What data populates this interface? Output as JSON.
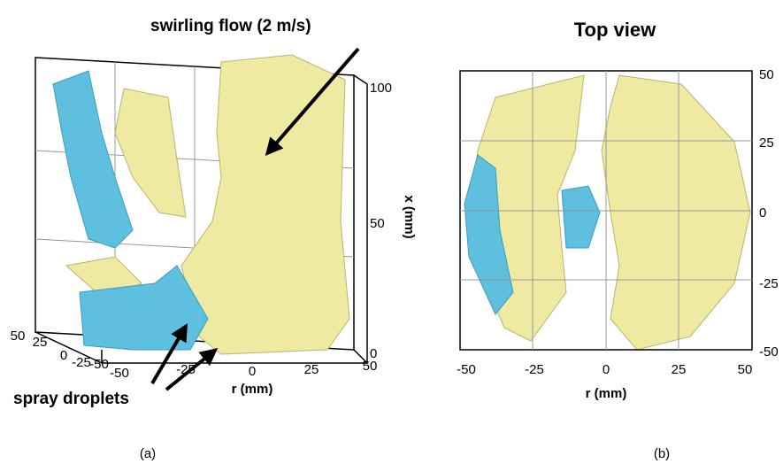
{
  "panel_a": {
    "label": "(a)",
    "annotations": [
      "swirling flow (2 m/s)",
      "spray droplets"
    ],
    "r_axis": {
      "title": "r (mm)",
      "ticks": [
        "-50",
        "-25",
        "0",
        "25",
        "50"
      ]
    },
    "x_axis": {
      "title": "x (mm)",
      "ticks": [
        "0",
        "50",
        "100"
      ]
    },
    "depth_axis": {
      "ticks": [
        "50",
        "25",
        "0",
        "-25",
        "-50"
      ]
    }
  },
  "panel_b": {
    "title": "Top view",
    "label": "(b)",
    "r_axis": {
      "title": "r (mm)",
      "ticks": [
        "-50",
        "-25",
        "0",
        "25",
        "50"
      ]
    },
    "y_axis": {
      "ticks": [
        "50",
        "25",
        "0",
        "-25",
        "-50"
      ]
    }
  }
}
